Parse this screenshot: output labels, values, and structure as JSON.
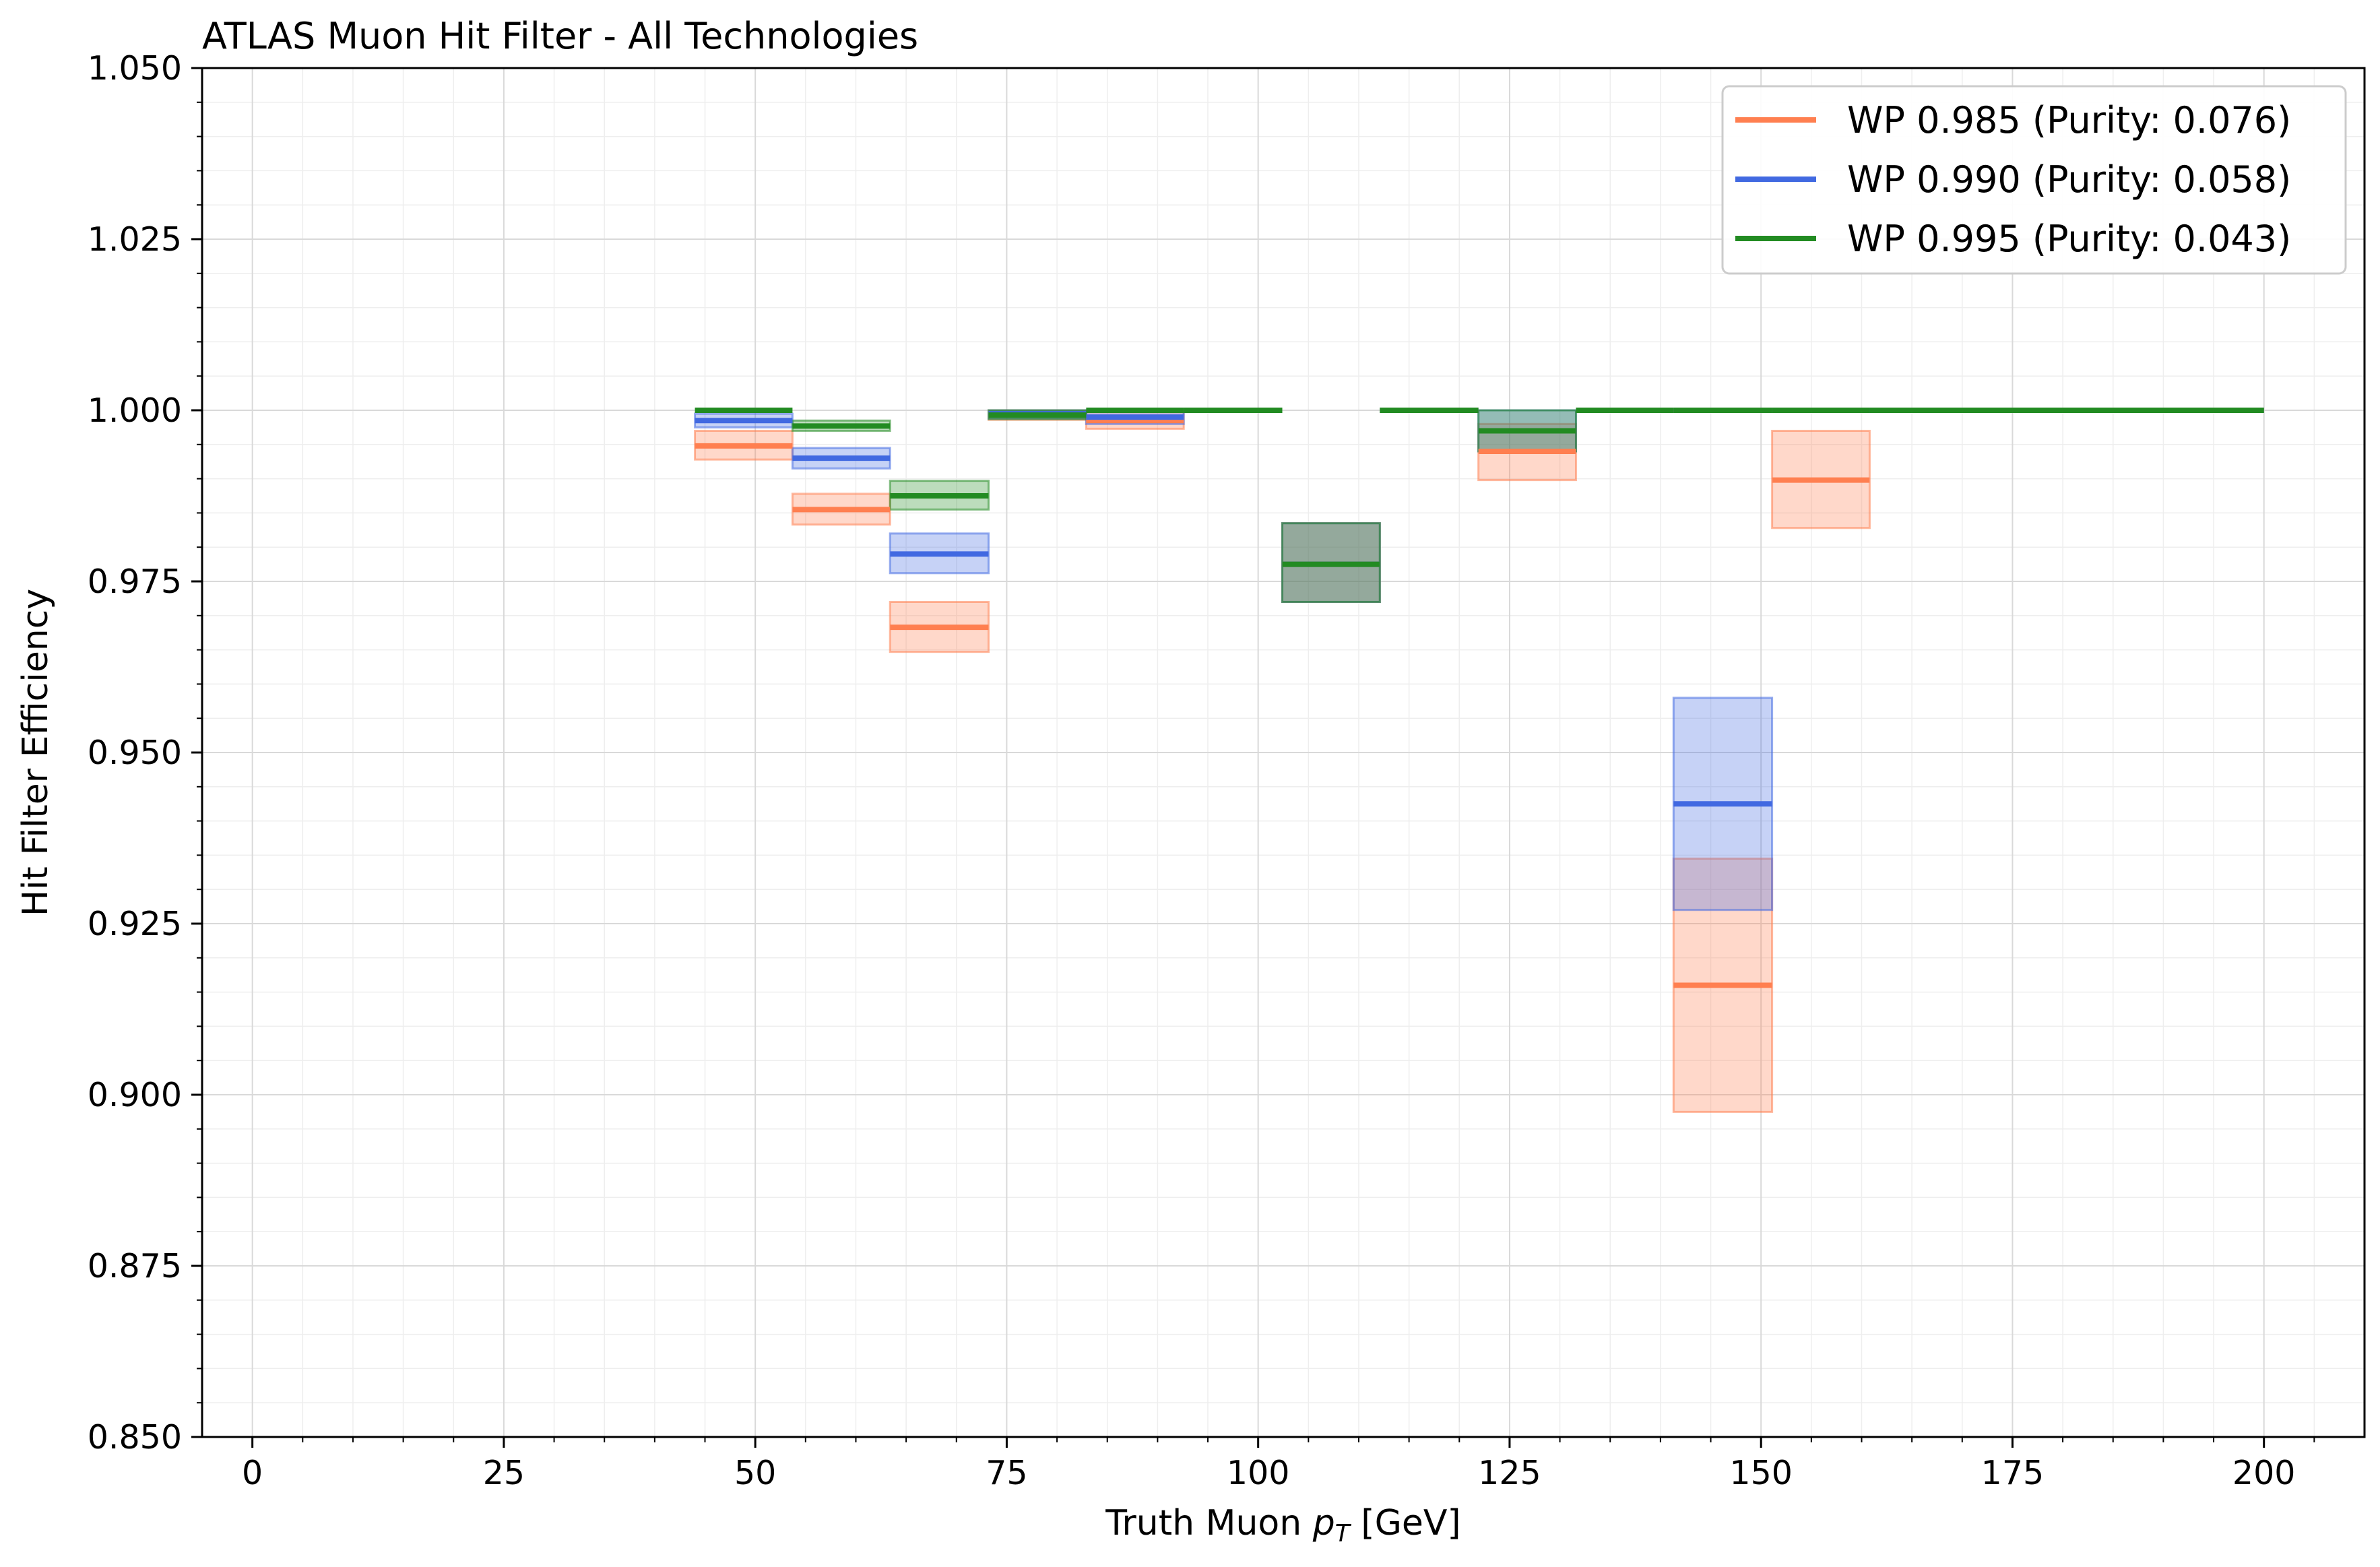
{
  "chart_data": {
    "type": "bar",
    "title": "ATLAS Muon Hit Filter - All Technologies",
    "xlabel_prefix": "Truth Muon ",
    "xlabel_var": "p",
    "xlabel_sub": "T",
    "xlabel_suffix": " [GeV]",
    "ylabel": "Hit Filter Efficiency",
    "xlim": [
      -5,
      210
    ],
    "ylim": [
      0.85,
      1.05
    ],
    "xticks": [
      0,
      25,
      50,
      75,
      100,
      125,
      150,
      175,
      200
    ],
    "xtick_labels": [
      "0",
      "25",
      "50",
      "75",
      "100",
      "125",
      "150",
      "175",
      "200"
    ],
    "yticks": [
      0.85,
      0.875,
      0.9,
      0.925,
      0.95,
      0.975,
      1.0,
      1.025,
      1.05
    ],
    "ytick_labels": [
      "0.850",
      "0.875",
      "0.900",
      "0.925",
      "0.950",
      "0.975",
      "1.000",
      "1.025",
      "1.050"
    ],
    "grid": true,
    "legend_position": "top-right",
    "series": [
      {
        "name": "WP 0.985 (Purity: 0.076)",
        "color": "#ff7f50",
        "bins": [
          {
            "x0": 44,
            "x1": 53.7,
            "y": 0.9948,
            "lo": 0.9928,
            "hi": 0.997
          },
          {
            "x0": 53.7,
            "x1": 63.4,
            "y": 0.9855,
            "lo": 0.9833,
            "hi": 0.9878
          },
          {
            "x0": 63.4,
            "x1": 73.2,
            "y": 0.9683,
            "lo": 0.9647,
            "hi": 0.972
          },
          {
            "x0": 73.2,
            "x1": 82.9,
            "y": 0.9993,
            "lo": 0.9986,
            "hi": 1.0
          },
          {
            "x0": 82.9,
            "x1": 92.6,
            "y": 0.9985,
            "lo": 0.9973,
            "hi": 0.9998
          },
          {
            "x0": 92.6,
            "x1": 102.4,
            "y": 1.0,
            "lo": 1.0,
            "hi": 1.0
          },
          {
            "x0": 102.4,
            "x1": 112.1,
            "y": 0.9775,
            "lo": 0.972,
            "hi": 0.9835
          },
          {
            "x0": 112.1,
            "x1": 121.9,
            "y": 1.0,
            "lo": 1.0,
            "hi": 1.0
          },
          {
            "x0": 121.9,
            "x1": 131.6,
            "y": 0.994,
            "lo": 0.9898,
            "hi": 0.998
          },
          {
            "x0": 131.6,
            "x1": 141.3,
            "y": 1.0,
            "lo": 1.0,
            "hi": 1.0
          },
          {
            "x0": 141.3,
            "x1": 151.1,
            "y": 0.916,
            "lo": 0.8975,
            "hi": 0.9345
          },
          {
            "x0": 151.1,
            "x1": 160.8,
            "y": 0.9898,
            "lo": 0.9828,
            "hi": 0.997
          },
          {
            "x0": 160.8,
            "x1": 200,
            "y": 1.0,
            "lo": 1.0,
            "hi": 1.0
          }
        ]
      },
      {
        "name": "WP 0.990 (Purity: 0.058)",
        "color": "#4169e1",
        "bins": [
          {
            "x0": 44,
            "x1": 53.7,
            "y": 0.9985,
            "lo": 0.9975,
            "hi": 0.9995
          },
          {
            "x0": 53.7,
            "x1": 63.4,
            "y": 0.993,
            "lo": 0.9915,
            "hi": 0.9945
          },
          {
            "x0": 63.4,
            "x1": 73.2,
            "y": 0.979,
            "lo": 0.9762,
            "hi": 0.982
          },
          {
            "x0": 73.2,
            "x1": 82.9,
            "y": 0.9995,
            "lo": 0.9988,
            "hi": 1.0
          },
          {
            "x0": 82.9,
            "x1": 92.6,
            "y": 0.999,
            "lo": 0.998,
            "hi": 1.0
          },
          {
            "x0": 92.6,
            "x1": 102.4,
            "y": 1.0,
            "lo": 1.0,
            "hi": 1.0
          },
          {
            "x0": 102.4,
            "x1": 112.1,
            "y": 0.9775,
            "lo": 0.972,
            "hi": 0.9835
          },
          {
            "x0": 112.1,
            "x1": 121.9,
            "y": 1.0,
            "lo": 1.0,
            "hi": 1.0
          },
          {
            "x0": 121.9,
            "x1": 131.6,
            "y": 0.997,
            "lo": 0.994,
            "hi": 1.0
          },
          {
            "x0": 131.6,
            "x1": 141.3,
            "y": 1.0,
            "lo": 1.0,
            "hi": 1.0
          },
          {
            "x0": 141.3,
            "x1": 151.1,
            "y": 0.9425,
            "lo": 0.927,
            "hi": 0.958
          },
          {
            "x0": 151.1,
            "x1": 160.8,
            "y": 1.0,
            "lo": 1.0,
            "hi": 1.0
          },
          {
            "x0": 160.8,
            "x1": 200,
            "y": 1.0,
            "lo": 1.0,
            "hi": 1.0
          }
        ]
      },
      {
        "name": "WP 0.995 (Purity: 0.043)",
        "color": "#228b22",
        "bins": [
          {
            "x0": 44,
            "x1": 53.7,
            "y": 1.0,
            "lo": 1.0,
            "hi": 1.0
          },
          {
            "x0": 53.7,
            "x1": 63.4,
            "y": 0.9977,
            "lo": 0.997,
            "hi": 0.9985
          },
          {
            "x0": 63.4,
            "x1": 73.2,
            "y": 0.9875,
            "lo": 0.9855,
            "hi": 0.9897
          },
          {
            "x0": 73.2,
            "x1": 82.9,
            "y": 0.9993,
            "lo": 0.9987,
            "hi": 1.0
          },
          {
            "x0": 82.9,
            "x1": 92.6,
            "y": 1.0,
            "lo": 1.0,
            "hi": 1.0
          },
          {
            "x0": 92.6,
            "x1": 102.4,
            "y": 1.0,
            "lo": 1.0,
            "hi": 1.0
          },
          {
            "x0": 102.4,
            "x1": 112.1,
            "y": 0.9775,
            "lo": 0.972,
            "hi": 0.9835
          },
          {
            "x0": 112.1,
            "x1": 121.9,
            "y": 1.0,
            "lo": 1.0,
            "hi": 1.0
          },
          {
            "x0": 121.9,
            "x1": 131.6,
            "y": 0.997,
            "lo": 0.994,
            "hi": 1.0
          },
          {
            "x0": 131.6,
            "x1": 141.3,
            "y": 1.0,
            "lo": 1.0,
            "hi": 1.0
          },
          {
            "x0": 141.3,
            "x1": 151.1,
            "y": 1.0,
            "lo": 1.0,
            "hi": 1.0
          },
          {
            "x0": 151.1,
            "x1": 160.8,
            "y": 1.0,
            "lo": 1.0,
            "hi": 1.0
          },
          {
            "x0": 160.8,
            "x1": 200,
            "y": 1.0,
            "lo": 1.0,
            "hi": 1.0
          }
        ]
      }
    ]
  }
}
